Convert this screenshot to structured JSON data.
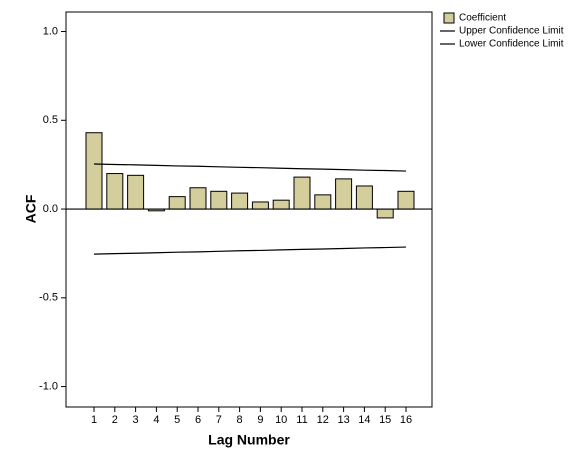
{
  "chart_data": {
    "type": "bar",
    "x_label": "Lag Number",
    "y_label": "ACF",
    "categories": [
      "1",
      "2",
      "3",
      "4",
      "5",
      "6",
      "7",
      "8",
      "9",
      "10",
      "11",
      "12",
      "13",
      "14",
      "15",
      "16"
    ],
    "ylim": [
      -1.115,
      1.11
    ],
    "yticks": [
      {
        "value": 1,
        "label": "1.0"
      },
      {
        "value": 0.5,
        "label": "0.5"
      },
      {
        "value": 0,
        "label": "0.0"
      },
      {
        "value": -0.5,
        "label": "-0.5"
      },
      {
        "value": -1,
        "label": "-1.0"
      }
    ],
    "series": [
      {
        "name": "Coefficient",
        "type": "bar",
        "color": "#d4cd9c",
        "values": [
          0.43,
          0.2,
          0.19,
          -0.01,
          0.07,
          0.12,
          0.1,
          0.09,
          0.04,
          0.05,
          0.18,
          0.08,
          0.17,
          0.13,
          -0.05,
          0.1
        ]
      },
      {
        "name": "Upper Confidence Limit",
        "type": "line",
        "color": "#000000",
        "values": [
          0.254,
          0.251,
          0.249,
          0.246,
          0.243,
          0.241,
          0.238,
          0.235,
          0.233,
          0.23,
          0.227,
          0.225,
          0.222,
          0.219,
          0.217,
          0.214
        ]
      },
      {
        "name": "Lower Confidence Limit",
        "type": "line",
        "color": "#000000",
        "values": [
          -0.254,
          -0.251,
          -0.249,
          -0.246,
          -0.243,
          -0.241,
          -0.238,
          -0.235,
          -0.233,
          -0.23,
          -0.227,
          -0.225,
          -0.222,
          -0.219,
          -0.217,
          -0.214
        ]
      }
    ]
  }
}
